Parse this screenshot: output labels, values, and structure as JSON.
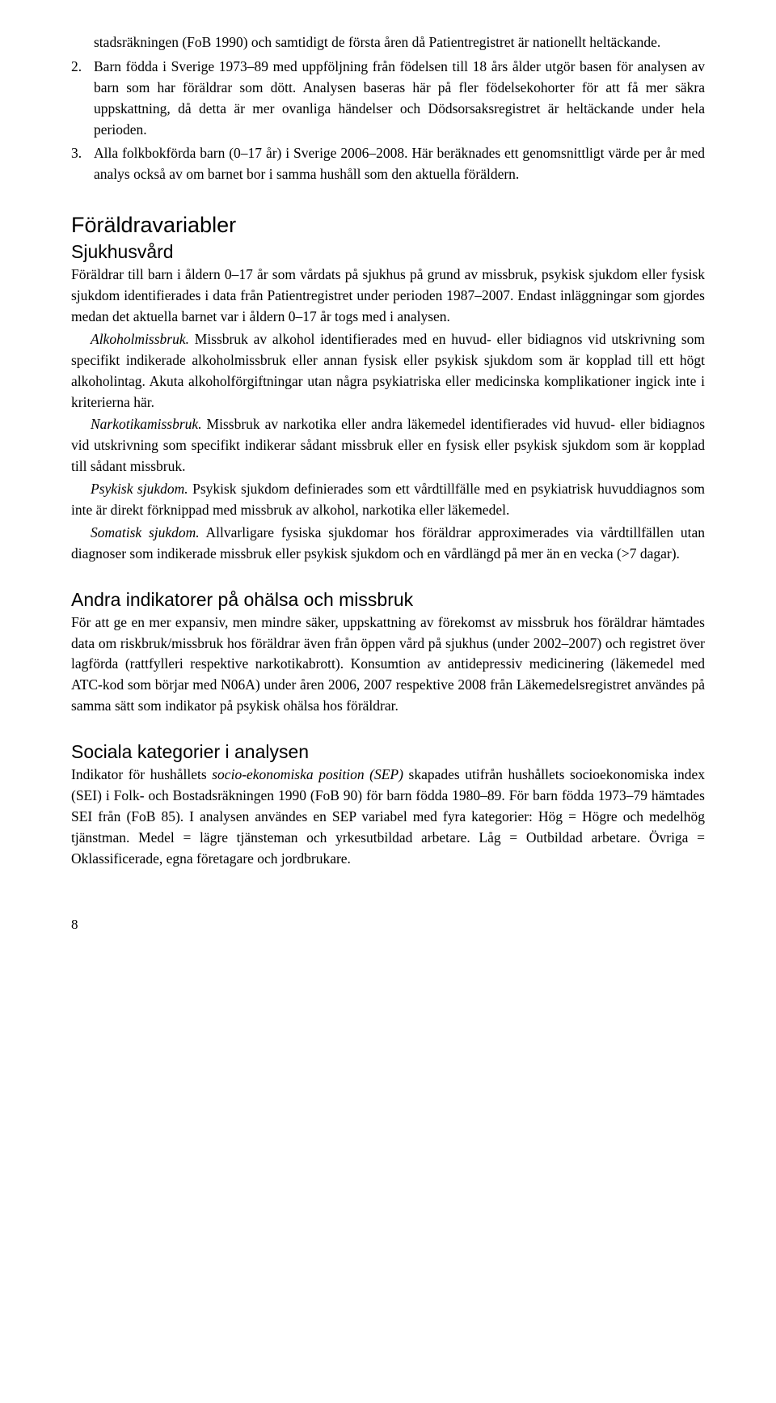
{
  "list": {
    "item1": {
      "num": "",
      "text": "stadsräkningen (FoB 1990) och samtidigt de första åren då Patientregistret är nationellt heltäckande."
    },
    "item2": {
      "num": "2.",
      "text": "Barn födda i Sverige 1973–89 med uppföljning från födelsen till 18 års ålder utgör basen för analysen av barn som har föräldrar som dött. Analysen baseras här på fler födelsekohorter för att få mer säkra uppskattning, då detta är mer ovanliga händelser och Dödsorsaksregistret är heltäckande under hela perioden."
    },
    "item3": {
      "num": "3.",
      "text": "Alla folkbokförda barn (0–17 år) i Sverige 2006–2008. Här beräknades ett genomsnittligt värde per år med analys också av om barnet bor i samma hushåll som den aktuella föräldern."
    }
  },
  "sec1": {
    "heading": "Föräldravariabler",
    "sub1": {
      "heading": "Sjukhusvård",
      "p1": "Föräldrar till barn i åldern 0–17 år som vårdats på sjukhus på grund av missbruk, psykisk sjukdom eller fysisk sjukdom identifierades i data från Patientregistret under perioden 1987–2007. Endast inläggningar som gjordes medan det aktuella barnet var i åldern 0–17 år togs med i analysen.",
      "p2_lead": "Alkoholmissbruk.",
      "p2": " Missbruk av alkohol identifierades med en huvud- eller bidiagnos vid utskrivning som specifikt indikerade alkoholmissbruk eller annan fysisk eller psykisk sjukdom som är kopplad till ett högt alkoholintag. Akuta alkoholförgiftningar utan några psykiatriska eller medicinska komplikationer ingick inte i kriterierna här.",
      "p3_lead": "Narkotikamissbruk.",
      "p3": " Missbruk av narkotika eller andra läkemedel identifierades vid huvud- eller bidiagnos vid utskrivning som specifikt indikerar sådant missbruk eller en fysisk eller psykisk sjukdom som är kopplad till sådant missbruk.",
      "p4_lead": "Psykisk sjukdom.",
      "p4": " Psykisk sjukdom definierades som ett vårdtillfälle med en psykiatrisk huvuddiagnos som inte är direkt förknippad med missbruk av alkohol, narkotika eller läkemedel.",
      "p5_lead": "Somatisk sjukdom.",
      "p5": " Allvarligare fysiska sjukdomar hos föräldrar approximerades via vårdtillfällen utan diagnoser som indikerade missbruk eller psykisk sjukdom och en vårdlängd på mer än en vecka (>7 dagar)."
    }
  },
  "sec2": {
    "heading": "Andra indikatorer på ohälsa och missbruk",
    "p1": "För att ge en mer expansiv, men mindre säker, uppskattning av förekomst av missbruk hos föräldrar hämtades data om riskbruk/missbruk hos föräldrar även från öppen vård på sjukhus (under 2002–2007) och registret över lagförda (rattfylleri respektive narkotikabrott). Konsumtion av antidepressiv medicinering (läkemedel med ATC-kod som börjar med N06A) under åren 2006, 2007 respektive 2008 från Läkemedelsregistret användes på samma sätt som indikator på psykisk ohälsa hos föräldrar."
  },
  "sec3": {
    "heading": "Sociala kategorier i analysen",
    "p1_a": "Indikator för hushållets ",
    "p1_ital": "socio-ekonomiska position (SEP)",
    "p1_b": " skapades utifrån hushållets socioekonomiska index (SEI) i Folk- och Bostadsräkningen 1990 (FoB 90) för barn födda 1980–89. För barn födda 1973–79 hämtades SEI från (FoB 85). I analysen användes en SEP variabel med fyra kategorier: Hög = Högre och medelhög tjänstman. Medel = lägre tjänsteman och yrkesutbildad arbetare. Låg = Outbildad arbetare. Övriga = Oklassificerade, egna företagare och jordbrukare."
  },
  "pageNumber": "8"
}
